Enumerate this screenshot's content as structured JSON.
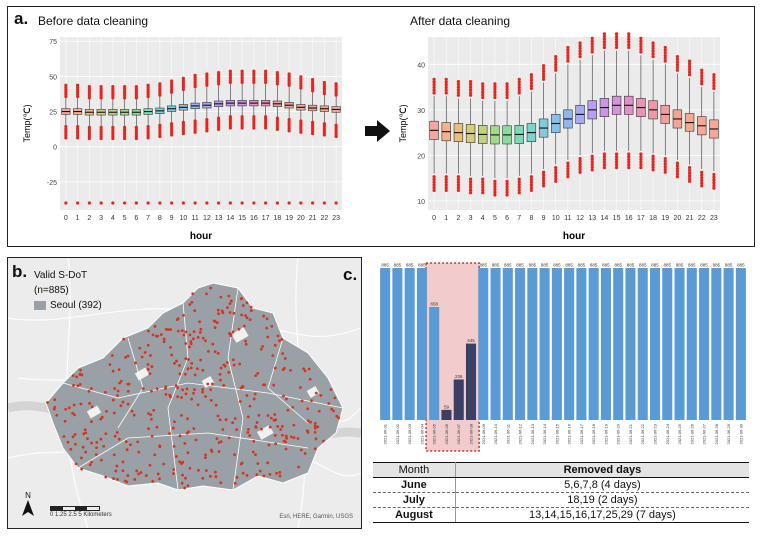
{
  "panel_a": {
    "label": "a.",
    "before_title": "Before data cleaning",
    "after_title": "After data cleaning",
    "before_plot": {
      "type": "box",
      "xlabel": "hour",
      "ylabel": "Temp(℃)",
      "yticks": [
        "75",
        "50",
        "25",
        "0",
        "-25"
      ],
      "tick_values": [
        75,
        50,
        25,
        0,
        -25
      ],
      "ylim": [
        -45,
        78
      ],
      "hours": [
        "0",
        "1",
        "2",
        "3",
        "4",
        "5",
        "6",
        "7",
        "8",
        "9",
        "10",
        "11",
        "12",
        "13",
        "14",
        "15",
        "16",
        "17",
        "18",
        "19",
        "20",
        "21",
        "22",
        "23"
      ],
      "medians": [
        25,
        25,
        24.5,
        24.5,
        24.5,
        24.5,
        24.5,
        25,
        25.5,
        27,
        28,
        29,
        29.5,
        30.5,
        31,
        31,
        31,
        31,
        30.5,
        29.5,
        28,
        27.5,
        27,
        26.5
      ],
      "q1": [
        23,
        23,
        22.5,
        22.5,
        22.5,
        22.5,
        22.5,
        23,
        23.5,
        25,
        26,
        27,
        27.5,
        28.5,
        29,
        29,
        29,
        29,
        28.5,
        27.5,
        26,
        25.5,
        25,
        24.5
      ],
      "q3": [
        27,
        27,
        26.5,
        26.5,
        26.5,
        26.5,
        26.5,
        27,
        27.5,
        29,
        30,
        31,
        31.5,
        32.5,
        33,
        33,
        33,
        33,
        32.5,
        31.5,
        30,
        29.5,
        29,
        28.5
      ],
      "whisker_low": [
        15,
        15,
        14.5,
        14.5,
        14.5,
        14.5,
        14.5,
        15,
        16,
        17,
        18,
        19,
        20,
        21,
        22,
        22,
        22,
        22,
        21,
        20,
        19,
        18,
        17,
        16
      ],
      "whisker_high": [
        35,
        35,
        34,
        34,
        34,
        34,
        34,
        35,
        36,
        38,
        40,
        42,
        43,
        44,
        45,
        45,
        45,
        45,
        44,
        43,
        41,
        39,
        37,
        36
      ]
    },
    "after_plot": {
      "type": "box",
      "xlabel": "hour",
      "ylabel": "Temp(℃)",
      "yticks": [
        "40",
        "30",
        "20",
        "10"
      ],
      "tick_values": [
        40,
        30,
        20,
        10
      ],
      "ylim": [
        8,
        46
      ],
      "hours": [
        "0",
        "1",
        "2",
        "3",
        "4",
        "5",
        "6",
        "7",
        "8",
        "9",
        "10",
        "11",
        "12",
        "13",
        "14",
        "15",
        "16",
        "17",
        "18",
        "19",
        "20",
        "21",
        "22",
        "23"
      ],
      "medians": [
        25.5,
        25.2,
        25,
        24.8,
        24.6,
        24.5,
        24.5,
        24.6,
        25,
        26,
        27,
        28,
        29,
        30,
        30.5,
        31,
        31,
        30.5,
        30,
        29,
        28,
        27.2,
        26.5,
        25.8
      ],
      "q1": [
        23.5,
        23.2,
        23,
        22.8,
        22.6,
        22.5,
        22.5,
        22.6,
        23,
        24,
        25,
        26,
        27,
        28,
        28.5,
        29,
        29,
        28.5,
        28,
        27,
        26,
        25.3,
        24.5,
        23.8
      ],
      "q3": [
        27.5,
        27.2,
        27,
        26.8,
        26.6,
        26.5,
        26.5,
        26.6,
        27,
        28,
        29,
        30,
        31,
        32,
        32.5,
        33,
        33,
        32.5,
        32,
        31,
        30,
        29.2,
        28.5,
        27.8
      ],
      "whisker_low": [
        16,
        16,
        16,
        15.5,
        15.5,
        15,
        15,
        15.5,
        16,
        17,
        18,
        19,
        20,
        20.5,
        21,
        21,
        21,
        21,
        20.5,
        20,
        19,
        18,
        17,
        16.5
      ],
      "whisker_high": [
        33,
        33,
        32.5,
        32.5,
        32,
        32,
        32,
        33,
        34,
        36,
        38,
        40,
        41,
        42,
        43,
        43,
        43,
        42,
        41,
        40,
        38,
        37,
        35,
        34
      ]
    }
  },
  "panel_b": {
    "label": "b.",
    "legend_points": "Valid S-DoT",
    "legend_n": "(n=885)",
    "legend_area": "Seoul (392)",
    "north": "N",
    "scale_text": "0  1.25 2.5        5 Kilometers",
    "credit": "Esri, HERE, Garmin, USGS"
  },
  "panel_c": {
    "label": "c.",
    "chart_data": {
      "type": "bar",
      "categories": [
        "2021-06-01",
        "2021-06-02",
        "2021-06-03",
        "2021-06-04",
        "2021-06-05",
        "2021-06-06",
        "2021-06-07",
        "2021-06-08",
        "2021-06-09",
        "2021-06-10",
        "2021-06-11",
        "2021-06-12",
        "2021-06-13",
        "2021-06-14",
        "2021-06-15",
        "2021-06-16",
        "2021-06-17",
        "2021-06-18",
        "2021-06-19",
        "2021-06-20",
        "2021-06-21",
        "2021-06-22",
        "2021-06-23",
        "2021-06-24",
        "2021-06-25",
        "2021-06-26",
        "2021-06-27",
        "2021-06-28",
        "2021-06-29",
        "2021-06-30"
      ],
      "values": [
        885,
        885,
        885,
        885,
        658,
        59,
        236,
        445,
        885,
        885,
        885,
        885,
        885,
        885,
        885,
        885,
        885,
        885,
        885,
        885,
        885,
        885,
        885,
        885,
        885,
        885,
        885,
        885,
        885,
        885
      ],
      "value_labels": [
        "885",
        "885",
        "885",
        "885",
        "658",
        "59",
        "236",
        "445",
        "885",
        "885",
        "885",
        "885",
        "885",
        "885",
        "885",
        "885",
        "885",
        "885",
        "885",
        "885",
        "885",
        "885",
        "885",
        "885",
        "885",
        "885",
        "885",
        "885",
        "885",
        "885"
      ],
      "highlight": [
        "2021-06-05",
        "2021-06-06",
        "2021-06-07",
        "2021-06-08"
      ],
      "ylim": [
        0,
        885
      ],
      "title": "",
      "xlabel": "",
      "ylabel": ""
    },
    "table": {
      "headers": [
        "Month",
        "Removed days"
      ],
      "rows": [
        {
          "month": "June",
          "days": "5,6,7,8  (4 days)"
        },
        {
          "month": "July",
          "days": "18,19  (2 days)"
        },
        {
          "month": "August",
          "days": "13,14,15,16,17,25,29  (7 days)"
        }
      ]
    }
  },
  "colors": {
    "bar": "#5b9bd5",
    "bar_highlight": "#3b3f63",
    "highlight_bg": "#f2cccc",
    "outlier": "#e8241c",
    "plot_bg": "#ebebeb",
    "map_land": "#9aa1a6",
    "map_dot": "#d7331f"
  }
}
